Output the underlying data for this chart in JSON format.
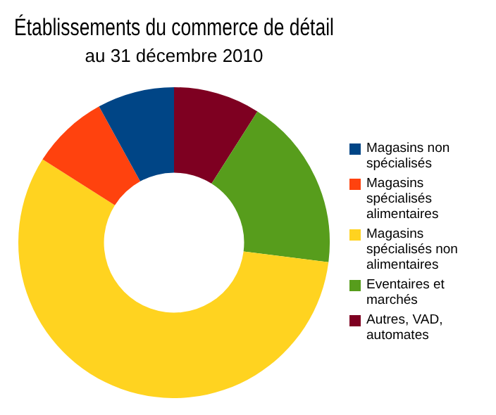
{
  "chart_data": {
    "type": "donut",
    "title": "Établissements du commerce de détail",
    "subtitle": "au 31 décembre 2010",
    "categories": [
      "Autres, VAD, automates",
      "Eventaires et marchés",
      "Magasins spécialisés non alimentaires",
      "Magasins spécialisés alimentaires",
      "Magasins non spécialisés"
    ],
    "values": [
      9,
      18,
      57,
      8,
      8
    ],
    "colors": [
      "#7e0021",
      "#579d1c",
      "#ffd320",
      "#ff420e",
      "#004586"
    ],
    "legend": "right"
  }
}
